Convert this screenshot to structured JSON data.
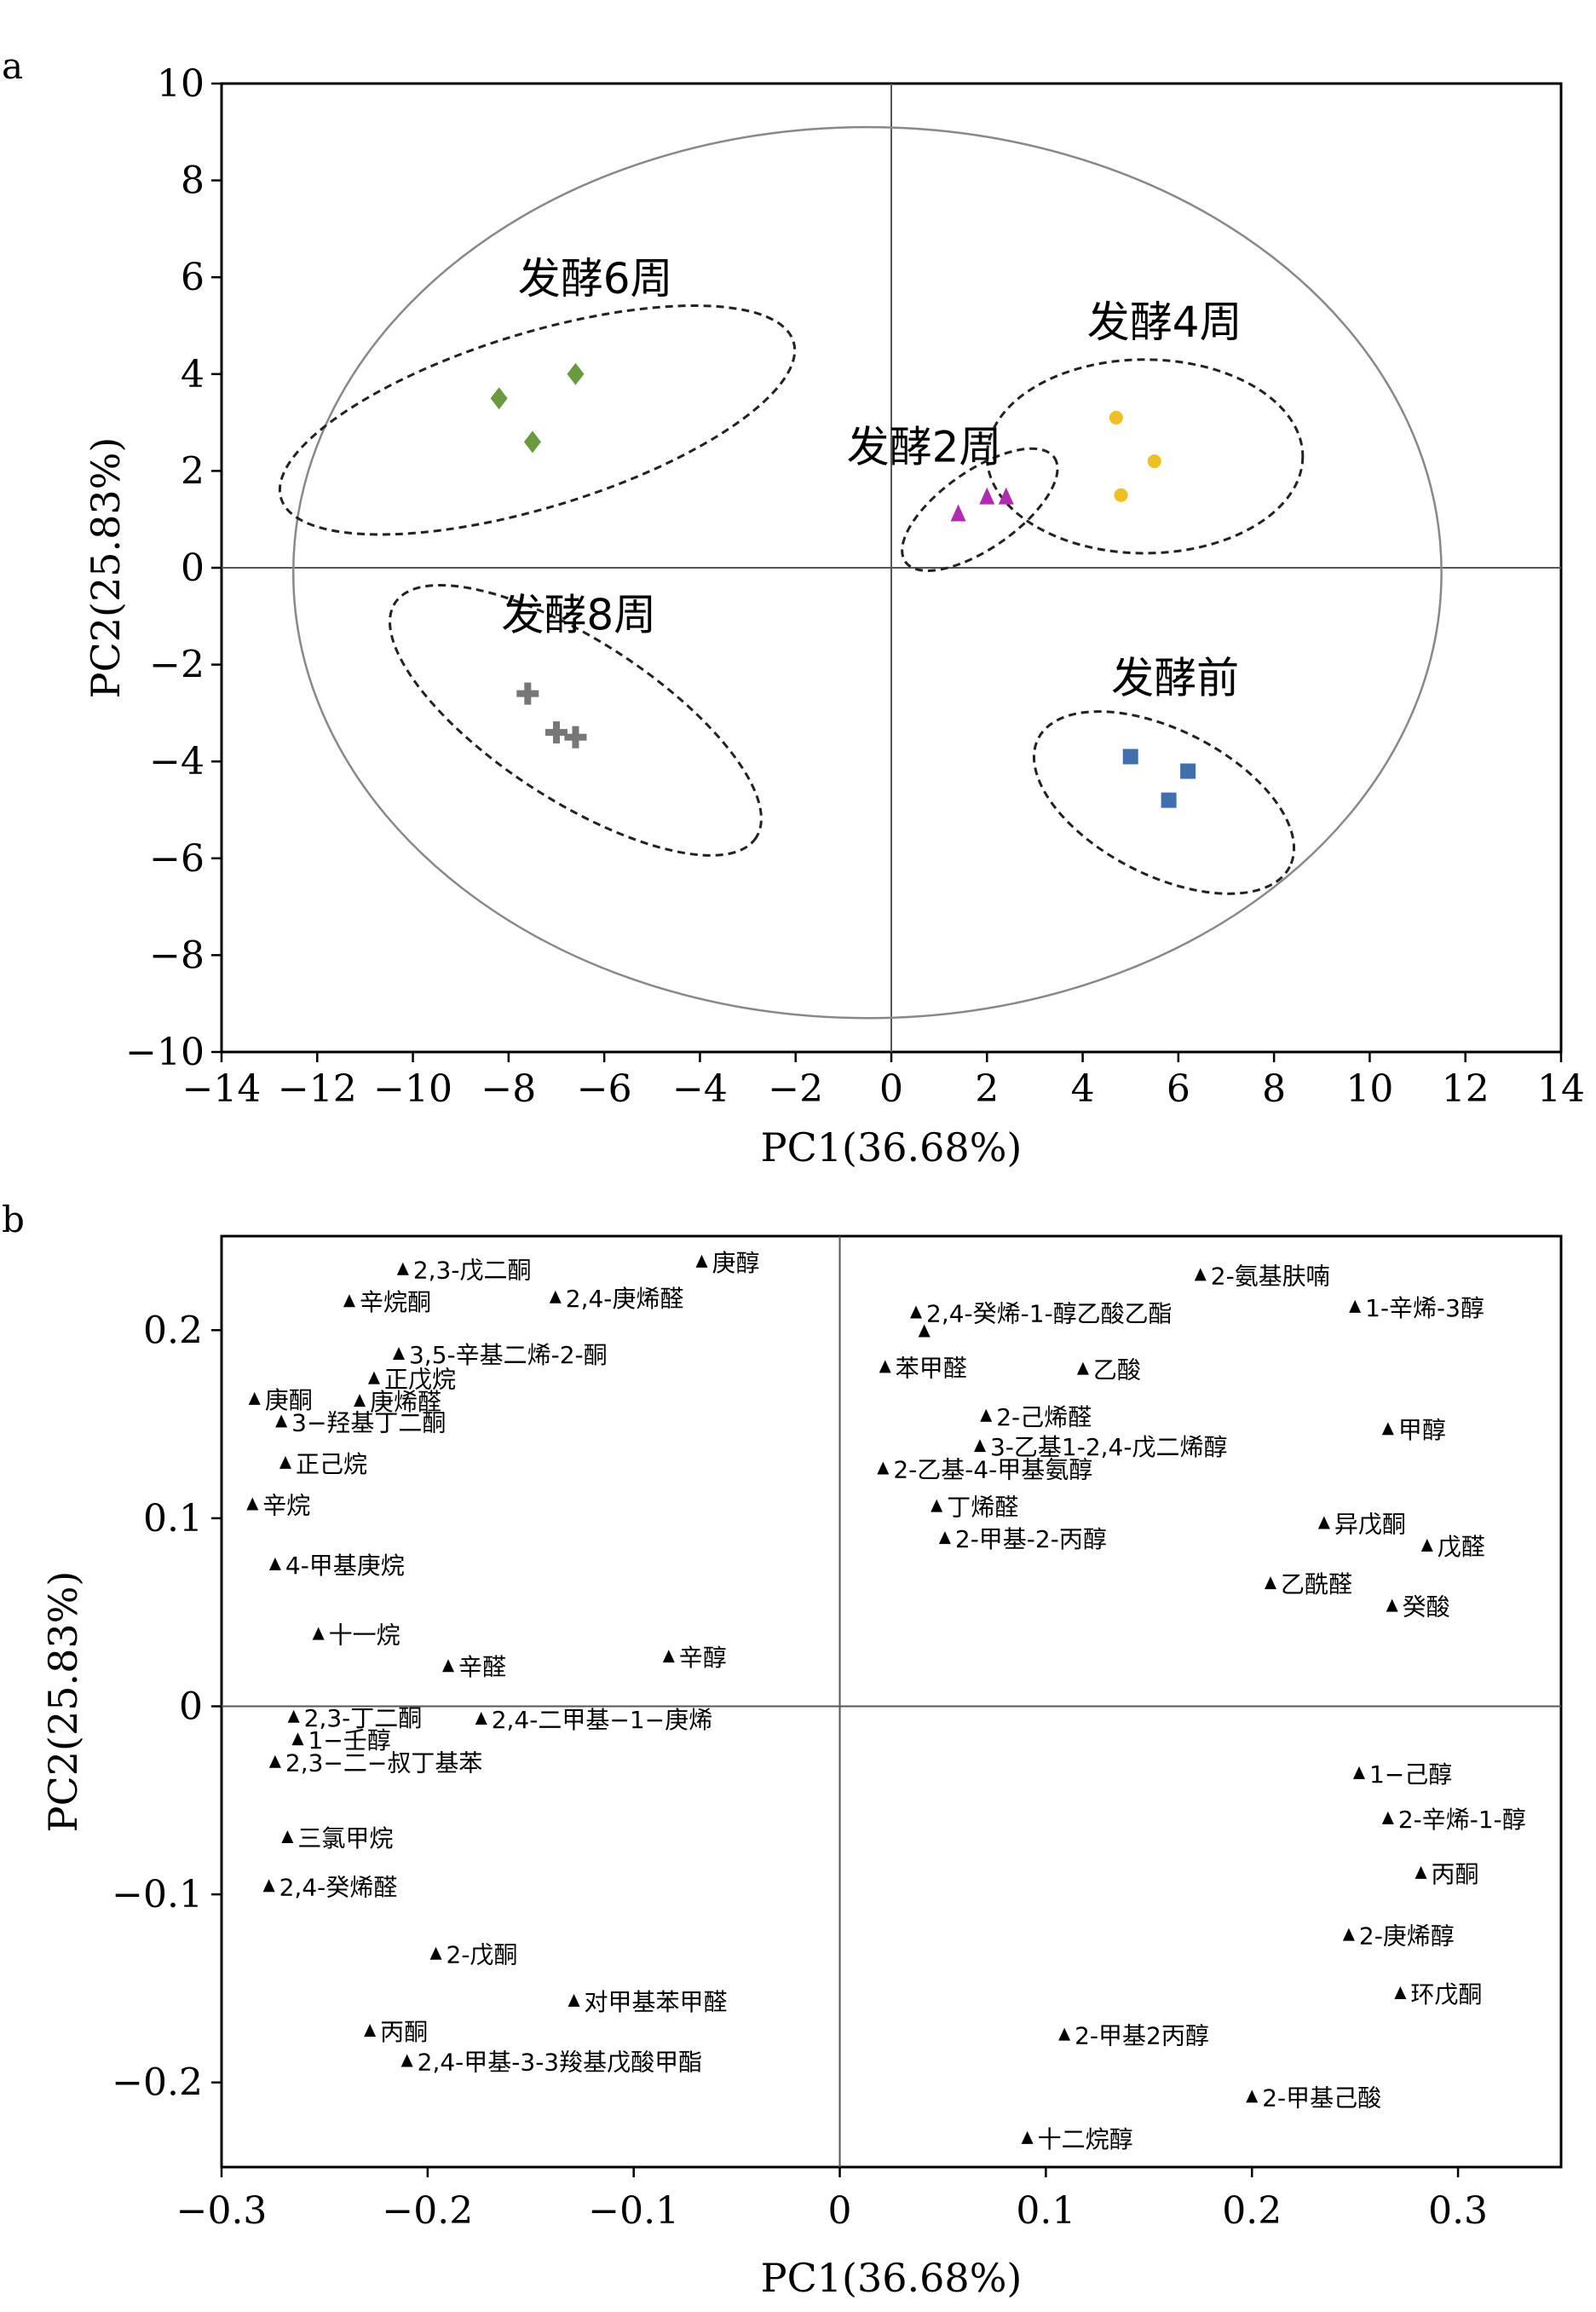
{
  "chart_data": [
    {
      "panel": "a",
      "type": "scatter",
      "xlabel": "PC1(36.68%)",
      "ylabel": "PC2(25.83%)",
      "xlim": [
        -14,
        14
      ],
      "ylim": [
        -10,
        10
      ],
      "xticks": [
        "−14",
        "−12",
        "−10",
        "−8",
        "−6",
        "−4",
        "−2",
        "0",
        "2",
        "4",
        "6",
        "8",
        "10",
        "12",
        "14"
      ],
      "yticks": [
        "10",
        "8",
        "6",
        "4",
        "2",
        "0",
        "−2",
        "−4",
        "−6",
        "−8",
        "−10"
      ],
      "confidence_ellipse": {
        "cx": -0.5,
        "cy": -0.1,
        "rx": 12.0,
        "ry": 9.2
      },
      "groups": [
        {
          "name": "发酵6周",
          "marker": "diamond",
          "color": "#6a9a3e",
          "points": [
            [
              -8.2,
              3.5
            ],
            [
              -7.5,
              2.6
            ],
            [
              -6.6,
              4.0
            ]
          ],
          "ellipse": {
            "cx": -7.4,
            "cy": 3.05,
            "rx": 5.6,
            "ry": 1.8,
            "angle": -17
          }
        },
        {
          "name": "发酵2周",
          "marker": "triangle",
          "color": "#b02bb0",
          "points": [
            [
              1.4,
              1.1
            ],
            [
              2.0,
              1.45
            ],
            [
              2.4,
              1.45
            ]
          ],
          "ellipse": {
            "cx": 1.85,
            "cy": 1.2,
            "rx": 1.9,
            "ry": 0.8,
            "angle": -35
          }
        },
        {
          "name": "发酵4周",
          "marker": "circle",
          "color": "#f0c020",
          "points": [
            [
              4.7,
              3.1
            ],
            [
              5.5,
              2.2
            ],
            [
              4.8,
              1.5
            ]
          ],
          "ellipse": {
            "cx": 5.3,
            "cy": 2.3,
            "rx": 3.3,
            "ry": 2.0,
            "angle": 0
          }
        },
        {
          "name": "发酵8周",
          "marker": "cross",
          "color": "#777777",
          "points": [
            [
              -7.6,
              -2.6
            ],
            [
              -7.0,
              -3.4
            ],
            [
              -6.6,
              -3.5
            ]
          ],
          "ellipse": {
            "cx": -6.6,
            "cy": -3.15,
            "rx": 4.5,
            "ry": 1.65,
            "angle": 33
          }
        },
        {
          "name": "发酵前",
          "marker": "square",
          "color": "#3f6faf",
          "points": [
            [
              5.0,
              -3.9
            ],
            [
              6.2,
              -4.2
            ],
            [
              5.8,
              -4.8
            ]
          ],
          "ellipse": {
            "cx": 5.7,
            "cy": -4.85,
            "rx": 2.95,
            "ry": 1.5,
            "angle": 27
          }
        }
      ]
    },
    {
      "panel": "b",
      "type": "scatter",
      "xlabel": "PC1(36.68%)",
      "ylabel": "PC2(25.83%)",
      "xlim": [
        -0.3,
        0.35
      ],
      "ylim": [
        -0.245,
        0.25
      ],
      "xticks": [
        -0.3,
        -0.2,
        -0.1,
        0,
        0.1,
        0.2,
        0.3
      ],
      "xtick_labels": [
        "−0.3",
        "−0.2",
        "−0.1",
        "0",
        "0.1",
        "0.2",
        "0.3"
      ],
      "yticks": [
        0.2,
        0.1,
        0,
        -0.1,
        -0.2
      ],
      "ytick_labels": [
        "0.2",
        "0.1",
        "0",
        "−0.1",
        "−0.2"
      ],
      "points": [
        {
          "label": "2,3-戊二酮",
          "x": -0.212,
          "y": 0.232
        },
        {
          "label": "辛烷酮",
          "x": -0.238,
          "y": 0.215
        },
        {
          "label": "2,4-庚烯醛",
          "x": -0.138,
          "y": 0.217
        },
        {
          "label": "庚醇",
          "x": -0.067,
          "y": 0.236
        },
        {
          "label": "3,5-辛基二烯-2-酮",
          "x": -0.214,
          "y": 0.187
        },
        {
          "label": "正戊烷",
          "x": -0.226,
          "y": 0.174
        },
        {
          "label": "庚酮",
          "x": -0.284,
          "y": 0.163
        },
        {
          "label": "庚烯醛",
          "x": -0.233,
          "y": 0.162
        },
        {
          "label": "3−羟基丁二酮",
          "x": -0.271,
          "y": 0.151
        },
        {
          "label": "正己烷",
          "x": -0.269,
          "y": 0.129
        },
        {
          "label": "辛烷",
          "x": -0.285,
          "y": 0.107
        },
        {
          "label": "4-甲基庚烷",
          "x": -0.274,
          "y": 0.075
        },
        {
          "label": "十一烷",
          "x": -0.253,
          "y": 0.038
        },
        {
          "label": "辛醛",
          "x": -0.19,
          "y": 0.021
        },
        {
          "label": "辛醇",
          "x": -0.083,
          "y": 0.026
        },
        {
          "label": "2-氨基肤喃",
          "x": 0.175,
          "y": 0.229
        },
        {
          "label": "2,4-癸烯-1-醇乙酸乙酯",
          "x": 0.037,
          "y": 0.209
        },
        {
          "label": "",
          "x": 0.041,
          "y": 0.199
        },
        {
          "label": "1-辛烯-3醇",
          "x": 0.25,
          "y": 0.212
        },
        {
          "label": "苯甲醛",
          "x": 0.022,
          "y": 0.18
        },
        {
          "label": "乙酸",
          "x": 0.118,
          "y": 0.179
        },
        {
          "label": "2-己烯醛",
          "x": 0.071,
          "y": 0.154
        },
        {
          "label": "甲醇",
          "x": 0.266,
          "y": 0.147
        },
        {
          "label": "3-乙基1-2,4-戊二烯醇",
          "x": 0.068,
          "y": 0.138
        },
        {
          "label": "2-乙基-4-甲基氨醇",
          "x": 0.021,
          "y": 0.126
        },
        {
          "label": "丁烯醛",
          "x": 0.047,
          "y": 0.106
        },
        {
          "label": "异戊酮",
          "x": 0.235,
          "y": 0.097
        },
        {
          "label": "2-甲基-2-丙醇",
          "x": 0.051,
          "y": 0.089
        },
        {
          "label": "戊醛",
          "x": 0.285,
          "y": 0.085
        },
        {
          "label": "乙酰醛",
          "x": 0.209,
          "y": 0.065
        },
        {
          "label": "癸酸",
          "x": 0.268,
          "y": 0.053
        },
        {
          "label": "2,3-丁二酮",
          "x": -0.265,
          "y": -0.006
        },
        {
          "label": "2,4-二甲基−1−庚烯",
          "x": -0.174,
          "y": -0.007
        },
        {
          "label": "1−壬醇",
          "x": -0.263,
          "y": -0.018
        },
        {
          "label": "2,3−二−叔丁基苯",
          "x": -0.274,
          "y": -0.03
        },
        {
          "label": "三氯甲烷",
          "x": -0.268,
          "y": -0.07
        },
        {
          "label": "2,4-癸烯醛",
          "x": -0.277,
          "y": -0.096
        },
        {
          "label": "2-戊酮",
          "x": -0.196,
          "y": -0.132
        },
        {
          "label": "对甲基苯甲醛",
          "x": -0.129,
          "y": -0.157
        },
        {
          "label": "丙酮",
          "x": -0.228,
          "y": -0.173
        },
        {
          "label": "2,4-甲基-3-3羧基戊酸甲酯",
          "x": -0.21,
          "y": -0.189
        },
        {
          "label": "1−己醇",
          "x": 0.252,
          "y": -0.036
        },
        {
          "label": "2-辛烯-1-醇",
          "x": 0.266,
          "y": -0.06
        },
        {
          "label": "丙酮",
          "x": 0.282,
          "y": -0.089
        },
        {
          "label": "2-庚烯醇",
          "x": 0.247,
          "y": -0.122
        },
        {
          "label": "环戊酮",
          "x": 0.272,
          "y": -0.153
        },
        {
          "label": "2-甲基2丙醇",
          "x": 0.109,
          "y": -0.175
        },
        {
          "label": "2-甲基己酸",
          "x": 0.2,
          "y": -0.208
        },
        {
          "label": "十二烷醇",
          "x": 0.091,
          "y": -0.23
        }
      ]
    }
  ],
  "panels": {
    "a": {
      "label": "a"
    },
    "b": {
      "label": "b"
    }
  }
}
